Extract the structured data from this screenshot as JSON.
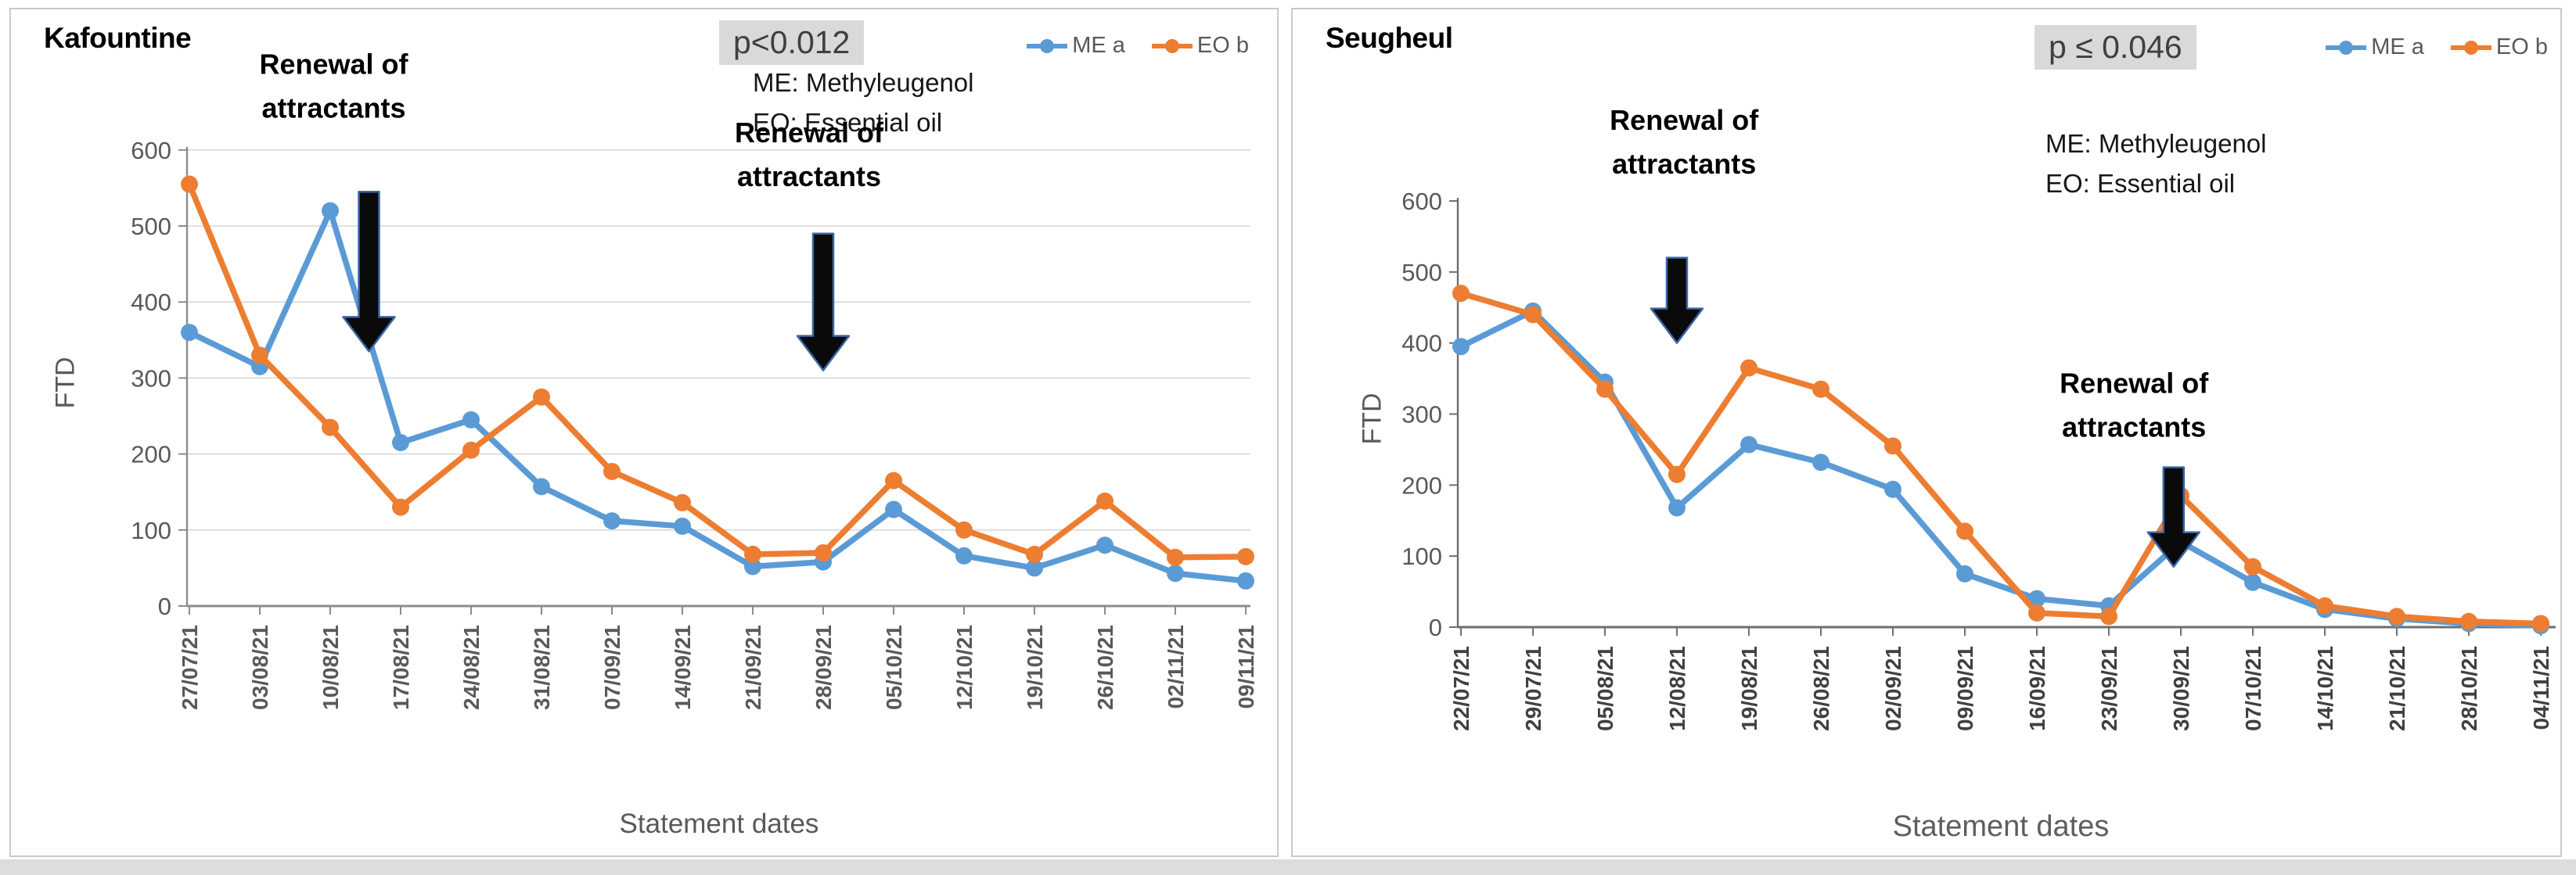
{
  "page": {
    "footer_strip_color": "#dddddd",
    "panel_border_color": "#c9c9c9"
  },
  "colors": {
    "me_series": "#5B9BD5",
    "eo_series": "#ED7D31",
    "gridline": "#d9d9d9",
    "axis": "#808080",
    "tick_label": "#595959",
    "p_badge_bg": "#d9d9d9",
    "arrow_fill": "#0a0a0a",
    "arrow_outline": "#3a66a7"
  },
  "chart_data": [
    {
      "type": "line",
      "title": "Kafountine",
      "p_label": "p<0.012",
      "note_lines": [
        "ME: Methyleugenol",
        "EO: Essential oil"
      ],
      "xlabel": "Statement dates",
      "ylabel": "FTD",
      "ylim": [
        0,
        600
      ],
      "y_ticks": [
        0,
        100,
        200,
        300,
        400,
        500,
        600
      ],
      "gridlines": true,
      "legend_position": "top-right",
      "categories": [
        "27/07/21",
        "03/08/21",
        "10/08/21",
        "17/08/21",
        "24/08/21",
        "31/08/21",
        "07/09/21",
        "14/09/21",
        "21/09/21",
        "28/09/21",
        "05/10/21",
        "12/10/21",
        "19/10/21",
        "26/10/21",
        "02/11/21",
        "09/11/21"
      ],
      "series": [
        {
          "name": "ME a",
          "color": "#5B9BD5",
          "values": [
            360,
            315,
            520,
            215,
            245,
            157,
            112,
            105,
            52,
            58,
            127,
            66,
            50,
            80,
            43,
            33
          ]
        },
        {
          "name": "EO b",
          "color": "#ED7D31",
          "values": [
            555,
            330,
            235,
            130,
            205,
            275,
            177,
            136,
            68,
            70,
            165,
            100,
            68,
            138,
            64,
            65
          ]
        }
      ],
      "annotations": [
        {
          "label_lines": [
            "Renewal of",
            "attractants"
          ],
          "text_x_index": 2.05,
          "text_top_value": 700,
          "arrow_x_index": 2.55,
          "arrow_top_value": 545,
          "arrow_tip_value": 335
        },
        {
          "label_lines": [
            "Renewal of",
            "attractants"
          ],
          "text_x_index": 8.8,
          "text_top_value": 610,
          "arrow_x_index": 9.0,
          "arrow_top_value": 490,
          "arrow_tip_value": 310
        }
      ]
    },
    {
      "type": "line",
      "title": "Seugheul",
      "p_label": "p ≤ 0.046",
      "note_lines": [
        "ME: Methyleugenol",
        "EO: Essential oil"
      ],
      "xlabel": "Statement dates",
      "ylabel": "FTD",
      "ylim": [
        0,
        600
      ],
      "y_ticks": [
        0,
        100,
        200,
        300,
        400,
        500,
        600
      ],
      "gridlines": false,
      "legend_position": "top-right",
      "categories": [
        "22/07/21",
        "29/07/21",
        "05/08/21",
        "12/08/21",
        "19/08/21",
        "26/08/21",
        "02/09/21",
        "09/09/21",
        "16/09/21",
        "23/09/21",
        "30/09/21",
        "07/10/21",
        "14/10/21",
        "21/10/21",
        "28/10/21",
        "04/11/21"
      ],
      "series": [
        {
          "name": "ME a",
          "color": "#5B9BD5",
          "values": [
            395,
            445,
            345,
            168,
            257,
            232,
            194,
            75,
            40,
            30,
            120,
            63,
            25,
            12,
            5,
            2
          ]
        },
        {
          "name": "EO b",
          "color": "#ED7D31",
          "values": [
            470,
            440,
            335,
            215,
            365,
            335,
            255,
            135,
            20,
            15,
            185,
            85,
            30,
            15,
            8,
            5
          ]
        }
      ],
      "annotations": [
        {
          "label_lines": [
            "Renewal of",
            "attractants"
          ],
          "text_x_index": 3.1,
          "text_top_value": 700,
          "arrow_x_index": 3.0,
          "arrow_top_value": 520,
          "arrow_tip_value": 400
        },
        {
          "label_lines": [
            "Renewal of",
            "attractants"
          ],
          "text_x_index": 9.35,
          "text_top_value": 330,
          "arrow_x_index": 9.9,
          "arrow_top_value": 225,
          "arrow_tip_value": 85
        }
      ]
    }
  ]
}
